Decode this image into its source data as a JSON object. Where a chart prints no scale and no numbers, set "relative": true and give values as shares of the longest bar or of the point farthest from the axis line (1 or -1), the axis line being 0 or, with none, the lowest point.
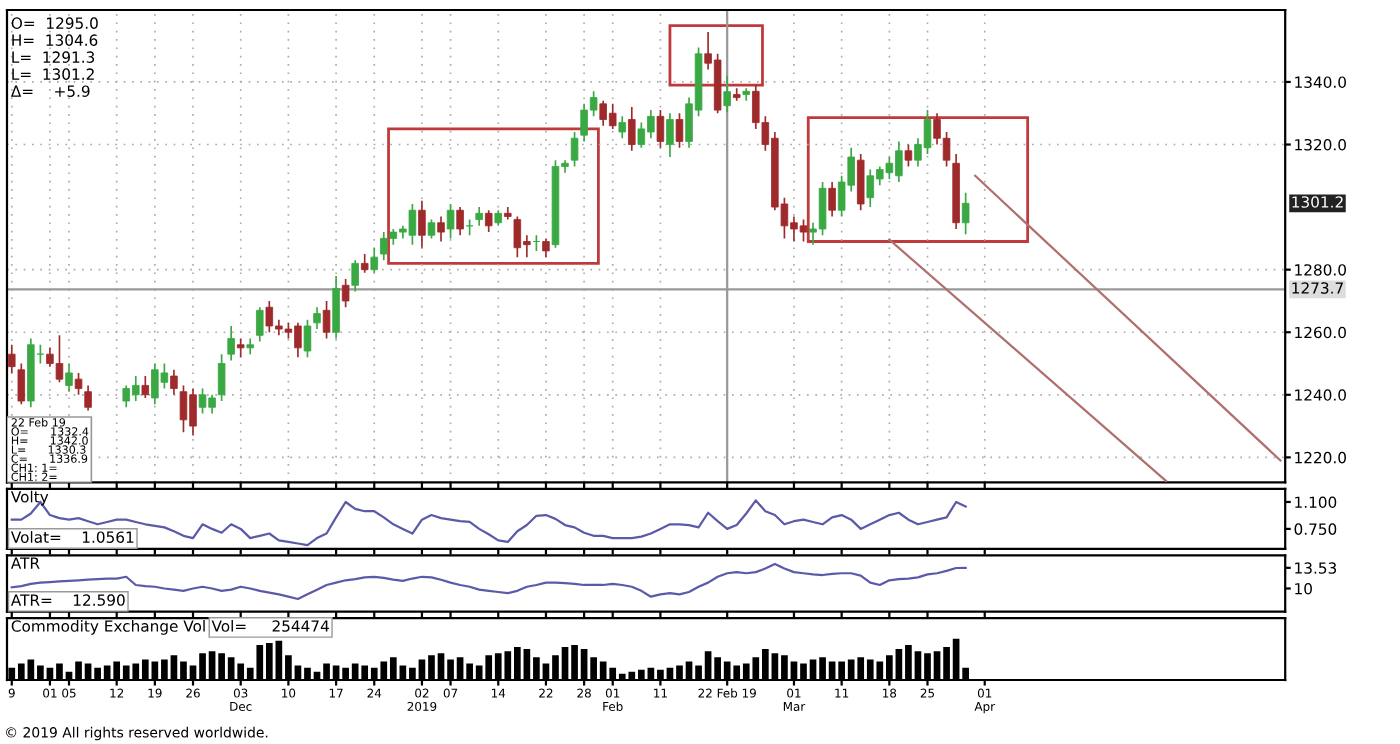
{
  "chart_data": [
    {
      "type": "candlestick",
      "categories": [
        "9",
        null,
        null,
        null,
        "01",
        null,
        "05",
        null,
        null,
        null,
        null,
        "12",
        null,
        null,
        null,
        "19",
        null,
        null,
        null,
        "26",
        null,
        null,
        null,
        null,
        "03\nDec",
        null,
        null,
        null,
        null,
        "10",
        null,
        null,
        null,
        null,
        "17",
        null,
        null,
        null,
        "24",
        null,
        null,
        null,
        null,
        "02\n2019",
        null,
        null,
        "07",
        null,
        null,
        null,
        null,
        "14",
        null,
        null,
        null,
        null,
        "22",
        null,
        null,
        null,
        "28",
        null,
        null,
        "01\nFeb",
        null,
        null,
        null,
        null,
        "11",
        null,
        null,
        null,
        null,
        null,
        null,
        "22 Feb 19",
        null,
        null,
        null,
        null,
        null,
        null,
        "01\nMar",
        null,
        null,
        null,
        null,
        "11",
        null,
        null,
        null,
        null,
        "18",
        null,
        null,
        null,
        "25",
        null,
        null,
        null,
        null,
        null,
        "01\nApr",
        null,
        null,
        null,
        null,
        null,
        null,
        null,
        null,
        null,
        null,
        null,
        null,
        null,
        null,
        null,
        null,
        null,
        null,
        null,
        null,
        null,
        null,
        null,
        null,
        null,
        null,
        null,
        null,
        null,
        null,
        null
      ],
      "ohlc": [
        [
          1253,
          1256,
          1247,
          1249
        ],
        [
          1248,
          1250,
          1237,
          1238
        ],
        [
          1238,
          1258,
          1236,
          1256
        ],
        [
          1253,
          1256,
          1250,
          1253
        ],
        [
          1253,
          1255,
          1249,
          1250
        ],
        [
          1250,
          1259,
          1244,
          1245
        ],
        [
          1243,
          1250,
          1241,
          1247
        ],
        [
          1245,
          1247,
          1240,
          1242
        ],
        [
          1241,
          1243,
          1235,
          1236
        ],
        null,
        null,
        null,
        [
          1238,
          1243,
          1236,
          1242
        ],
        [
          1240,
          1246,
          1238,
          1243
        ],
        [
          1243,
          1246,
          1239,
          1240
        ],
        [
          1239,
          1250,
          1237,
          1248
        ],
        [
          1244,
          1250,
          1242,
          1247
        ],
        [
          1246,
          1248,
          1240,
          1242
        ],
        [
          1241,
          1243,
          1228,
          1232
        ],
        [
          1240,
          1242,
          1227,
          1230
        ],
        [
          1236,
          1242,
          1234,
          1240
        ],
        [
          1236,
          1240,
          1234,
          1239
        ],
        [
          1240,
          1253,
          1238,
          1250
        ],
        [
          1253,
          1262,
          1251,
          1258
        ],
        [
          1256,
          1258,
          1252,
          1255
        ],
        [
          1255,
          1258,
          1253,
          1256
        ],
        [
          1259,
          1268,
          1257,
          1267
        ],
        [
          1268,
          1270,
          1260,
          1262
        ],
        [
          1262,
          1264,
          1259,
          1261
        ],
        [
          1261,
          1263,
          1258,
          1260
        ],
        [
          1262,
          1263,
          1252,
          1255
        ],
        [
          1254,
          1264,
          1252,
          1262
        ],
        [
          1263,
          1268,
          1261,
          1266
        ],
        [
          1267,
          1270,
          1258,
          1260
        ],
        [
          1260,
          1278,
          1258,
          1274
        ],
        [
          1275,
          1277,
          1268,
          1270
        ],
        [
          1275,
          1283,
          1273,
          1282
        ],
        [
          1282,
          1285,
          1279,
          1280
        ],
        [
          1280,
          1287,
          1279,
          1284
        ],
        [
          1285,
          1292,
          1283,
          1290
        ],
        [
          1290,
          1293,
          1288,
          1292
        ],
        [
          1292,
          1294,
          1290,
          1293
        ],
        [
          1291,
          1301,
          1288,
          1299
        ],
        [
          1299,
          1302,
          1287,
          1291
        ],
        [
          1291,
          1296,
          1290,
          1295
        ],
        [
          1295,
          1297,
          1289,
          1292
        ],
        [
          1293,
          1301,
          1290,
          1299
        ],
        [
          1299,
          1300,
          1291,
          1293
        ],
        [
          1294,
          1296,
          1291,
          1294
        ],
        [
          1296,
          1300,
          1294,
          1298
        ],
        [
          1298,
          1299,
          1292,
          1294
        ],
        [
          1295,
          1299,
          1294,
          1298
        ],
        [
          1298,
          1300,
          1296,
          1297
        ],
        [
          1296,
          1297,
          1284,
          1287
        ],
        [
          1289,
          1291,
          1284,
          1288
        ],
        [
          1289,
          1291,
          1286,
          1289
        ],
        [
          1289,
          1290,
          1284,
          1286
        ],
        [
          1288,
          1315,
          1287,
          1313
        ],
        [
          1313,
          1315,
          1311,
          1314
        ],
        [
          1315,
          1324,
          1313,
          1322
        ],
        [
          1323,
          1333,
          1321,
          1331
        ],
        [
          1331,
          1337,
          1329,
          1335
        ],
        [
          1333,
          1334,
          1326,
          1328
        ],
        [
          1330,
          1333,
          1325,
          1326
        ],
        [
          1324,
          1329,
          1322,
          1327
        ],
        [
          1328,
          1332,
          1318,
          1320
        ],
        [
          1320,
          1327,
          1319,
          1325
        ],
        [
          1324,
          1331,
          1322,
          1329
        ],
        [
          1329,
          1331,
          1319,
          1321
        ],
        [
          1320,
          1330,
          1316,
          1328
        ],
        [
          1328,
          1330,
          1319,
          1321
        ],
        [
          1321,
          1335,
          1319,
          1333
        ],
        [
          1331,
          1351,
          1329,
          1349
        ],
        [
          1349,
          1356,
          1344,
          1346
        ],
        [
          1347,
          1349,
          1330,
          1331
        ],
        [
          1332.4,
          1342.0,
          1330.3,
          1336.9
        ],
        [
          1336,
          1338,
          1334,
          1335
        ],
        [
          1336,
          1338,
          1334,
          1337
        ],
        [
          1337,
          1339,
          1325,
          1327
        ],
        [
          1327,
          1329,
          1318,
          1320
        ],
        [
          1322,
          1324,
          1299,
          1300
        ],
        [
          1301,
          1303,
          1290,
          1294
        ],
        [
          1295,
          1297,
          1289,
          1293
        ],
        [
          1294,
          1296,
          1289,
          1292
        ],
        [
          1292,
          1295,
          1288,
          1293
        ],
        [
          1293,
          1308,
          1291,
          1306
        ],
        [
          1306,
          1308,
          1297,
          1299
        ],
        [
          1299,
          1310,
          1297,
          1308
        ],
        [
          1307,
          1319,
          1305,
          1316
        ],
        [
          1315,
          1317,
          1299,
          1301
        ],
        [
          1303,
          1312,
          1300,
          1310
        ],
        [
          1309,
          1313,
          1307,
          1312
        ],
        [
          1311,
          1316,
          1309,
          1314
        ],
        [
          1310,
          1321,
          1308,
          1318
        ],
        [
          1318,
          1320,
          1313,
          1315
        ],
        [
          1315,
          1322,
          1313,
          1320
        ],
        [
          1319,
          1331,
          1317,
          1328
        ],
        [
          1328,
          1330,
          1320,
          1322
        ],
        [
          1322,
          1324,
          1313,
          1315
        ],
        [
          1314,
          1317,
          1293,
          1295
        ],
        [
          1295.0,
          1304.6,
          1291.3,
          1301.2
        ],
        null,
        null,
        null,
        null,
        null,
        null,
        null,
        null,
        null,
        null,
        null,
        null,
        null,
        null,
        null,
        null,
        null,
        null,
        null,
        null,
        null,
        null,
        null,
        null,
        null,
        null,
        null,
        null,
        null,
        null,
        null,
        null,
        null
      ],
      "series": [
        {
          "type": "line",
          "color": "#b07070",
          "values": [
            null,
            null,
            null,
            null,
            null,
            null,
            null,
            null,
            null,
            null,
            null,
            null,
            null,
            null,
            null,
            null,
            null,
            null,
            null,
            null,
            null,
            null,
            null,
            null,
            null,
            null,
            null,
            null,
            null,
            null,
            null,
            null,
            null,
            null,
            null,
            null,
            null,
            null,
            null,
            null,
            null,
            null,
            null,
            null,
            null,
            null,
            null,
            null,
            null,
            null,
            null,
            null,
            null,
            null,
            null,
            null,
            null,
            null,
            null,
            null,
            null,
            null,
            null,
            null,
            null,
            null,
            null,
            null,
            null,
            null,
            null,
            null,
            null,
            null,
            null,
            null,
            null,
            null,
            null,
            null,
            null,
            null,
            null,
            null,
            null,
            null,
            null,
            null,
            null,
            null,
            null,
            null,
            1289.6,
            null,
            null,
            null,
            null,
            null,
            null,
            null,
            null,
            null,
            null,
            null,
            null,
            null,
            null,
            null,
            null,
            null,
            null,
            null,
            null,
            null,
            null,
            null,
            null,
            null,
            null,
            null,
            null,
            1212.5,
            null,
            null,
            null,
            null,
            null,
            null,
            null,
            null,
            null,
            null,
            null,
            null
          ]
        },
        {
          "type": "line",
          "color": "#b07070",
          "values": [
            null,
            null,
            null,
            null,
            null,
            null,
            null,
            null,
            null,
            null,
            null,
            null,
            null,
            null,
            null,
            null,
            null,
            null,
            null,
            null,
            null,
            null,
            null,
            null,
            null,
            null,
            null,
            null,
            null,
            null,
            null,
            null,
            null,
            null,
            null,
            null,
            null,
            null,
            null,
            null,
            null,
            null,
            null,
            null,
            null,
            null,
            null,
            null,
            null,
            null,
            null,
            null,
            null,
            null,
            null,
            null,
            null,
            null,
            null,
            null,
            null,
            null,
            null,
            null,
            null,
            null,
            null,
            null,
            null,
            null,
            null,
            null,
            null,
            null,
            null,
            null,
            null,
            null,
            null,
            null,
            null,
            null,
            null,
            null,
            null,
            null,
            null,
            null,
            null,
            null,
            null,
            null,
            null,
            null,
            null,
            null,
            null,
            null,
            null,
            null,
            null,
            1310,
            null,
            null,
            null,
            null,
            null,
            null,
            null,
            null,
            null,
            null,
            null,
            null,
            null,
            null,
            null,
            null,
            null,
            null,
            null,
            null,
            null,
            null,
            null,
            null,
            null,
            null,
            null,
            null,
            null,
            null,
            null,
            1219
          ]
        }
      ],
      "colors": [
        "#9e2a2b",
        "#9e2a2b",
        "#3aa843",
        "#3aa843",
        "#9e2a2b",
        "#9e2a2b",
        "#3aa843",
        "#9e2a2b",
        "#9e2a2b",
        null,
        null,
        null,
        "#3aa843",
        "#3aa843",
        "#9e2a2b",
        "#3aa843",
        "#3aa843",
        "#9e2a2b",
        "#9e2a2b",
        "#9e2a2b",
        "#3aa843",
        "#3aa843",
        "#3aa843",
        "#3aa843",
        "#9e2a2b",
        "#3aa843",
        "#3aa843",
        "#9e2a2b",
        "#9e2a2b",
        "#9e2a2b",
        "#9e2a2b",
        "#3aa843",
        "#3aa843",
        "#9e2a2b",
        "#3aa843",
        "#9e2a2b",
        "#3aa843",
        "#9e2a2b",
        "#3aa843",
        "#3aa843",
        "#3aa843",
        "#3aa843",
        "#3aa843",
        "#9e2a2b",
        "#3aa843",
        "#9e2a2b",
        "#3aa843",
        "#9e2a2b",
        "#3aa843",
        "#3aa843",
        "#9e2a2b",
        "#3aa843",
        "#9e2a2b",
        "#9e2a2b",
        "#9e2a2b",
        "#3aa843",
        "#9e2a2b",
        "#3aa843",
        "#3aa843",
        "#3aa843",
        "#3aa843",
        "#3aa843",
        "#9e2a2b",
        "#9e2a2b",
        "#3aa843",
        "#9e2a2b",
        "#3aa843",
        "#3aa843",
        "#9e2a2b",
        "#3aa843",
        "#9e2a2b",
        "#3aa843",
        "#3aa843",
        "#9e2a2b",
        "#9e2a2b",
        "#3aa843",
        "#9e2a2b",
        "#3aa843",
        "#9e2a2b",
        "#9e2a2b",
        "#9e2a2b",
        "#9e2a2b",
        "#9e2a2b",
        "#9e2a2b",
        "#3aa843",
        "#3aa843",
        "#9e2a2b",
        "#3aa843",
        "#3aa843",
        "#9e2a2b",
        "#3aa843",
        "#3aa843",
        "#3aa843",
        "#3aa843",
        "#9e2a2b",
        "#3aa843",
        "#3aa843",
        "#9e2a2b",
        "#9e2a2b",
        "#9e2a2b",
        "#3aa843",
        null,
        null,
        null,
        null,
        null,
        null,
        null,
        null,
        null,
        null,
        null,
        null,
        null,
        null,
        null,
        null,
        null,
        null,
        null,
        null,
        null,
        null,
        null,
        null,
        null,
        null,
        null,
        null,
        null,
        null,
        null,
        null,
        null
      ],
      "ylim": [
        1212,
        1363
      ],
      "yticks": [
        {
          "value": 1220,
          "label": "1220.0"
        },
        {
          "value": 1240,
          "label": "1240.0"
        },
        {
          "value": 1260,
          "label": "1260.0"
        },
        {
          "value": 1280,
          "label": "1280.0"
        },
        {
          "value": 1320,
          "label": "1320.0"
        },
        {
          "value": 1340,
          "label": "1340.0"
        }
      ],
      "grid": true,
      "tick_labels": "y",
      "ref_lines": [
        {
          "axis": "y",
          "value": 1273.7,
          "label": "1273.7",
          "color": "#999999"
        },
        {
          "axis": "x",
          "value": "22 Feb 19",
          "color": "#999999"
        }
      ],
      "annotations": [
        "O=  1295.0",
        "H=  1304.6",
        "L=  1291.3",
        "L=  1301.2",
        "Δ=    +5.9",
        "22 Feb 19",
        "O=      1332.4",
        "H=      1342.0",
        "L=      1330.3",
        "C=      1336.9",
        "CH1: 1=",
        "CH1: 2=",
        {
          "text": "1301.2",
          "y": 1301.2
        }
      ]
    },
    {
      "type": "line",
      "title": "Volty",
      "annotations": [
        "Volat=    1.0561"
      ],
      "series": [
        {
          "color": "#5a5aa8",
          "values": [
            0.87,
            0.87,
            0.95,
            1.1,
            0.93,
            0.89,
            0.87,
            0.89,
            0.85,
            0.81,
            0.84,
            0.87,
            0.87,
            0.84,
            0.81,
            0.79,
            0.77,
            0.72,
            0.66,
            0.63,
            0.81,
            0.75,
            0.7,
            0.81,
            0.75,
            0.63,
            0.66,
            0.69,
            0.6,
            0.58,
            0.56,
            0.54,
            0.63,
            0.69,
            0.9,
            1.1,
            1.01,
            0.98,
            0.98,
            0.9,
            0.81,
            0.75,
            0.69,
            0.87,
            0.93,
            0.89,
            0.87,
            0.85,
            0.84,
            0.75,
            0.68,
            0.6,
            0.58,
            0.72,
            0.8,
            0.92,
            0.93,
            0.88,
            0.8,
            0.77,
            0.7,
            0.66,
            0.66,
            0.63,
            0.63,
            0.63,
            0.65,
            0.69,
            0.75,
            0.81,
            0.81,
            0.8,
            0.77,
            0.96,
            0.85,
            0.75,
            0.8,
            0.95,
            1.12,
            0.98,
            0.93,
            0.81,
            0.85,
            0.87,
            0.84,
            0.81,
            0.9,
            0.93,
            0.87,
            0.75,
            0.81,
            0.87,
            0.93,
            0.96,
            0.87,
            0.81,
            0.84,
            0.87,
            0.9,
            1.1,
            1.04
          ]
        }
      ],
      "ylim": [
        0.49,
        1.27
      ],
      "yticks": [
        {
          "value": 1.1,
          "label": "1.100"
        },
        {
          "value": 0.75,
          "label": "0.750"
        }
      ],
      "tick_labels": "y"
    },
    {
      "type": "line",
      "title": "ATR",
      "annotations": [
        "ATR=    12.590"
      ],
      "series": [
        {
          "color": "#5a5aa8",
          "values": [
            10.2,
            10.4,
            10.8,
            11.0,
            11.1,
            11.2,
            11.3,
            11.4,
            11.5,
            11.6,
            11.7,
            11.7,
            12.0,
            10.6,
            10.4,
            10.3,
            10.0,
            9.8,
            9.6,
            10.0,
            10.3,
            10.0,
            9.6,
            9.8,
            10.3,
            10.0,
            9.6,
            9.3,
            9.0,
            8.6,
            8.2,
            9.0,
            9.8,
            10.6,
            11.0,
            11.4,
            11.6,
            11.9,
            12.0,
            11.8,
            11.5,
            11.3,
            11.7,
            12.0,
            11.9,
            11.5,
            11.0,
            10.6,
            10.3,
            9.8,
            9.6,
            9.4,
            9.2,
            9.6,
            10.3,
            10.6,
            11.0,
            11.0,
            10.9,
            10.8,
            10.6,
            10.6,
            10.6,
            10.8,
            10.6,
            10.3,
            9.6,
            8.6,
            9.0,
            9.2,
            9.0,
            9.4,
            10.3,
            11.0,
            12.0,
            12.6,
            12.8,
            12.6,
            12.8,
            13.4,
            14.2,
            13.4,
            12.8,
            12.6,
            12.4,
            12.3,
            12.5,
            12.6,
            12.6,
            12.2,
            11.0,
            10.6,
            11.4,
            11.6,
            11.7,
            11.9,
            12.4,
            12.6,
            13.0,
            13.5,
            13.53
          ]
        }
      ],
      "ylim": [
        6.05,
        15.65
      ],
      "yticks": [
        {
          "value": 13.53,
          "label": "13.53"
        },
        {
          "value": 10,
          "label": "10"
        }
      ],
      "tick_labels": "y"
    },
    {
      "type": "bar",
      "title": "Commodity Exchange Vol",
      "relative": true,
      "color": "#000000",
      "tick_labels": "x",
      "values": [
        0.3,
        0.4,
        0.5,
        0.35,
        0.3,
        0.4,
        0.2,
        0.45,
        0.4,
        0.3,
        0.35,
        0.45,
        0.35,
        0.4,
        0.5,
        0.45,
        0.5,
        0.6,
        0.45,
        0.35,
        0.65,
        0.7,
        0.65,
        0.55,
        0.4,
        0.3,
        0.85,
        0.9,
        0.95,
        0.6,
        0.35,
        0.3,
        0.2,
        0.4,
        0.35,
        0.3,
        0.4,
        0.35,
        0.3,
        0.45,
        0.55,
        0.35,
        0.3,
        0.5,
        0.6,
        0.65,
        0.5,
        0.55,
        0.4,
        0.35,
        0.6,
        0.65,
        0.7,
        0.8,
        0.75,
        0.55,
        0.4,
        0.6,
        0.8,
        0.85,
        0.75,
        0.55,
        0.45,
        0.3,
        0.15,
        0.2,
        0.25,
        0.3,
        0.25,
        0.3,
        0.35,
        0.45,
        0.35,
        0.7,
        0.55,
        0.45,
        0.35,
        0.4,
        0.55,
        0.75,
        0.65,
        0.6,
        0.45,
        0.4,
        0.5,
        0.55,
        0.45,
        0.45,
        0.5,
        0.55,
        0.5,
        0.45,
        0.6,
        0.75,
        0.85,
        0.7,
        0.65,
        0.7,
        0.8,
        1.0,
        0.3
      ],
      "annotations": [
        "Vol=     254474",
        "© 2019 All rights reserved worldwide."
      ]
    }
  ]
}
